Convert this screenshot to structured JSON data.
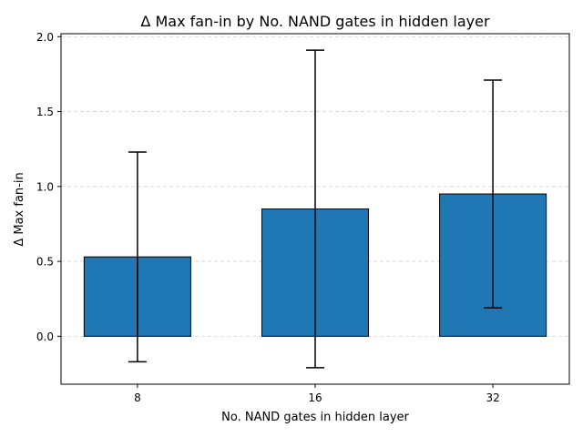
{
  "chart_data": {
    "type": "bar",
    "title": "Δ Max fan-in by No. NAND gates in hidden layer",
    "xlabel": "No. NAND gates in hidden layer",
    "ylabel": "Δ Max fan-in",
    "categories": [
      "8",
      "16",
      "32"
    ],
    "values": [
      0.53,
      0.85,
      0.95
    ],
    "error_low": [
      -0.17,
      -0.21,
      0.19
    ],
    "error_high": [
      1.23,
      1.91,
      1.71
    ],
    "ylim": [
      -0.32,
      2.02
    ],
    "yticks": [
      0.0,
      0.5,
      1.0,
      1.5,
      2.0
    ],
    "ytick_labels": [
      "0.0",
      "0.5",
      "1.0",
      "1.5",
      "2.0"
    ],
    "grid": "horizontal dashed",
    "bar_color": "#1f77b4",
    "edge_color": "#000000",
    "error_color": "#000000",
    "grid_color": "#d3d3d3"
  }
}
